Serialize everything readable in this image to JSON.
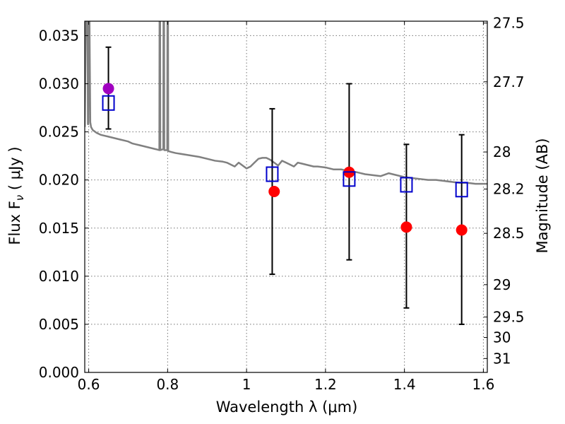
{
  "chart_data": {
    "type": "scatter",
    "title": "",
    "xlabel": "Wavelength  λ (μm)",
    "ylabel": "Flux  F",
    "ylabel_subscript": "ν",
    "ylabel_unit": "  ( μJy )",
    "ylabel_right": "Magnitude (AB)",
    "xlim": [
      0.59,
      1.61
    ],
    "ylim": [
      0.0,
      0.0365
    ],
    "x_ticks": [
      0.6,
      0.8,
      1.0,
      1.2,
      1.4,
      1.6
    ],
    "x_tick_labels": [
      "0.6",
      "0.8",
      "1",
      "1.2",
      "1.4",
      "1.6"
    ],
    "y_ticks": [
      0.0,
      0.005,
      0.01,
      0.015,
      0.02,
      0.025,
      0.03,
      0.035
    ],
    "y_tick_labels": [
      "0.000",
      "0.005",
      "0.010",
      "0.015",
      "0.020",
      "0.025",
      "0.030",
      "0.035"
    ],
    "right_ticks": [
      {
        "mag": 27.5,
        "label": "27.5"
      },
      {
        "mag": 27.7,
        "label": "27.7"
      },
      {
        "mag": 28.0,
        "label": "28"
      },
      {
        "mag": 28.2,
        "label": "28.2"
      },
      {
        "mag": 28.5,
        "label": "28.5"
      },
      {
        "mag": 29.0,
        "label": "29"
      },
      {
        "mag": 29.5,
        "label": "29.5"
      },
      {
        "mag": 30.0,
        "label": "30"
      },
      {
        "mag": 31.0,
        "label": "31"
      }
    ],
    "grid": true,
    "series": [
      {
        "name": "model spectrum",
        "kind": "line",
        "color": "#808080",
        "x": [
          0.59,
          0.593,
          0.597,
          0.598,
          0.599,
          0.6,
          0.602,
          0.604,
          0.606,
          0.61,
          0.62,
          0.63,
          0.64,
          0.65,
          0.66,
          0.67,
          0.68,
          0.69,
          0.7,
          0.71,
          0.72,
          0.73,
          0.74,
          0.75,
          0.76,
          0.77,
          0.779,
          0.7795,
          0.781,
          0.7815,
          0.789,
          0.7895,
          0.791,
          0.7915,
          0.799,
          0.7995,
          0.801,
          0.8015,
          0.81,
          0.82,
          0.85,
          0.88,
          0.9,
          0.92,
          0.94,
          0.95,
          0.96,
          0.97,
          0.98,
          0.99,
          1.0,
          1.01,
          1.02,
          1.03,
          1.04,
          1.05,
          1.06,
          1.07,
          1.08,
          1.09,
          1.1,
          1.11,
          1.12,
          1.13,
          1.14,
          1.15,
          1.16,
          1.17,
          1.18,
          1.2,
          1.22,
          1.24,
          1.26,
          1.28,
          1.3,
          1.32,
          1.34,
          1.36,
          1.38,
          1.4,
          1.42,
          1.44,
          1.46,
          1.48,
          1.5,
          1.52,
          1.54,
          1.56,
          1.58,
          1.6,
          1.61
        ],
        "y": [
          0.0255,
          0.0365,
          0.0365,
          0.0258,
          0.0258,
          0.0365,
          0.0365,
          0.026,
          0.0255,
          0.0252,
          0.0249,
          0.0247,
          0.0246,
          0.0245,
          0.0244,
          0.0243,
          0.0242,
          0.0241,
          0.024,
          0.0238,
          0.0237,
          0.0236,
          0.0235,
          0.0234,
          0.0233,
          0.0232,
          0.0231,
          0.0365,
          0.0365,
          0.0231,
          0.0232,
          0.0365,
          0.0365,
          0.0231,
          0.0231,
          0.0365,
          0.0365,
          0.023,
          0.0229,
          0.0228,
          0.0226,
          0.0224,
          0.0222,
          0.022,
          0.0219,
          0.0218,
          0.0216,
          0.0214,
          0.0218,
          0.0215,
          0.0212,
          0.0214,
          0.0218,
          0.0222,
          0.0223,
          0.0223,
          0.0221,
          0.0218,
          0.0215,
          0.022,
          0.0218,
          0.0216,
          0.0214,
          0.0218,
          0.0217,
          0.0216,
          0.0215,
          0.0214,
          0.0214,
          0.0213,
          0.0211,
          0.0211,
          0.0209,
          0.0208,
          0.0206,
          0.0205,
          0.0204,
          0.0207,
          0.0205,
          0.0203,
          0.0202,
          0.0201,
          0.02,
          0.02,
          0.0199,
          0.0198,
          0.0197,
          0.0197,
          0.0196,
          0.0196,
          0.0196
        ]
      },
      {
        "name": "observed (magenta)",
        "kind": "point",
        "color": "#a000c0",
        "x": [
          0.65
        ],
        "y": [
          0.0295
        ]
      },
      {
        "name": "observed (red)",
        "kind": "point",
        "color": "#ff0000",
        "x": [
          1.07,
          1.26,
          1.405,
          1.545
        ],
        "y": [
          0.0188,
          0.0208,
          0.0151,
          0.0148
        ]
      },
      {
        "name": "model (blue squares)",
        "kind": "square",
        "color": "#0000cc",
        "x": [
          0.65,
          1.065,
          1.26,
          1.405,
          1.545
        ],
        "y": [
          0.028,
          0.0206,
          0.0201,
          0.0195,
          0.019
        ]
      },
      {
        "name": "error bars",
        "kind": "errorbar",
        "color": "#000000",
        "x": [
          0.65,
          1.065,
          1.26,
          1.405,
          1.545
        ],
        "y_low": [
          0.0253,
          0.0102,
          0.0117,
          0.0067,
          0.005
        ],
        "y_high": [
          0.0338,
          0.0274,
          0.03,
          0.0237,
          0.0247
        ]
      }
    ]
  }
}
